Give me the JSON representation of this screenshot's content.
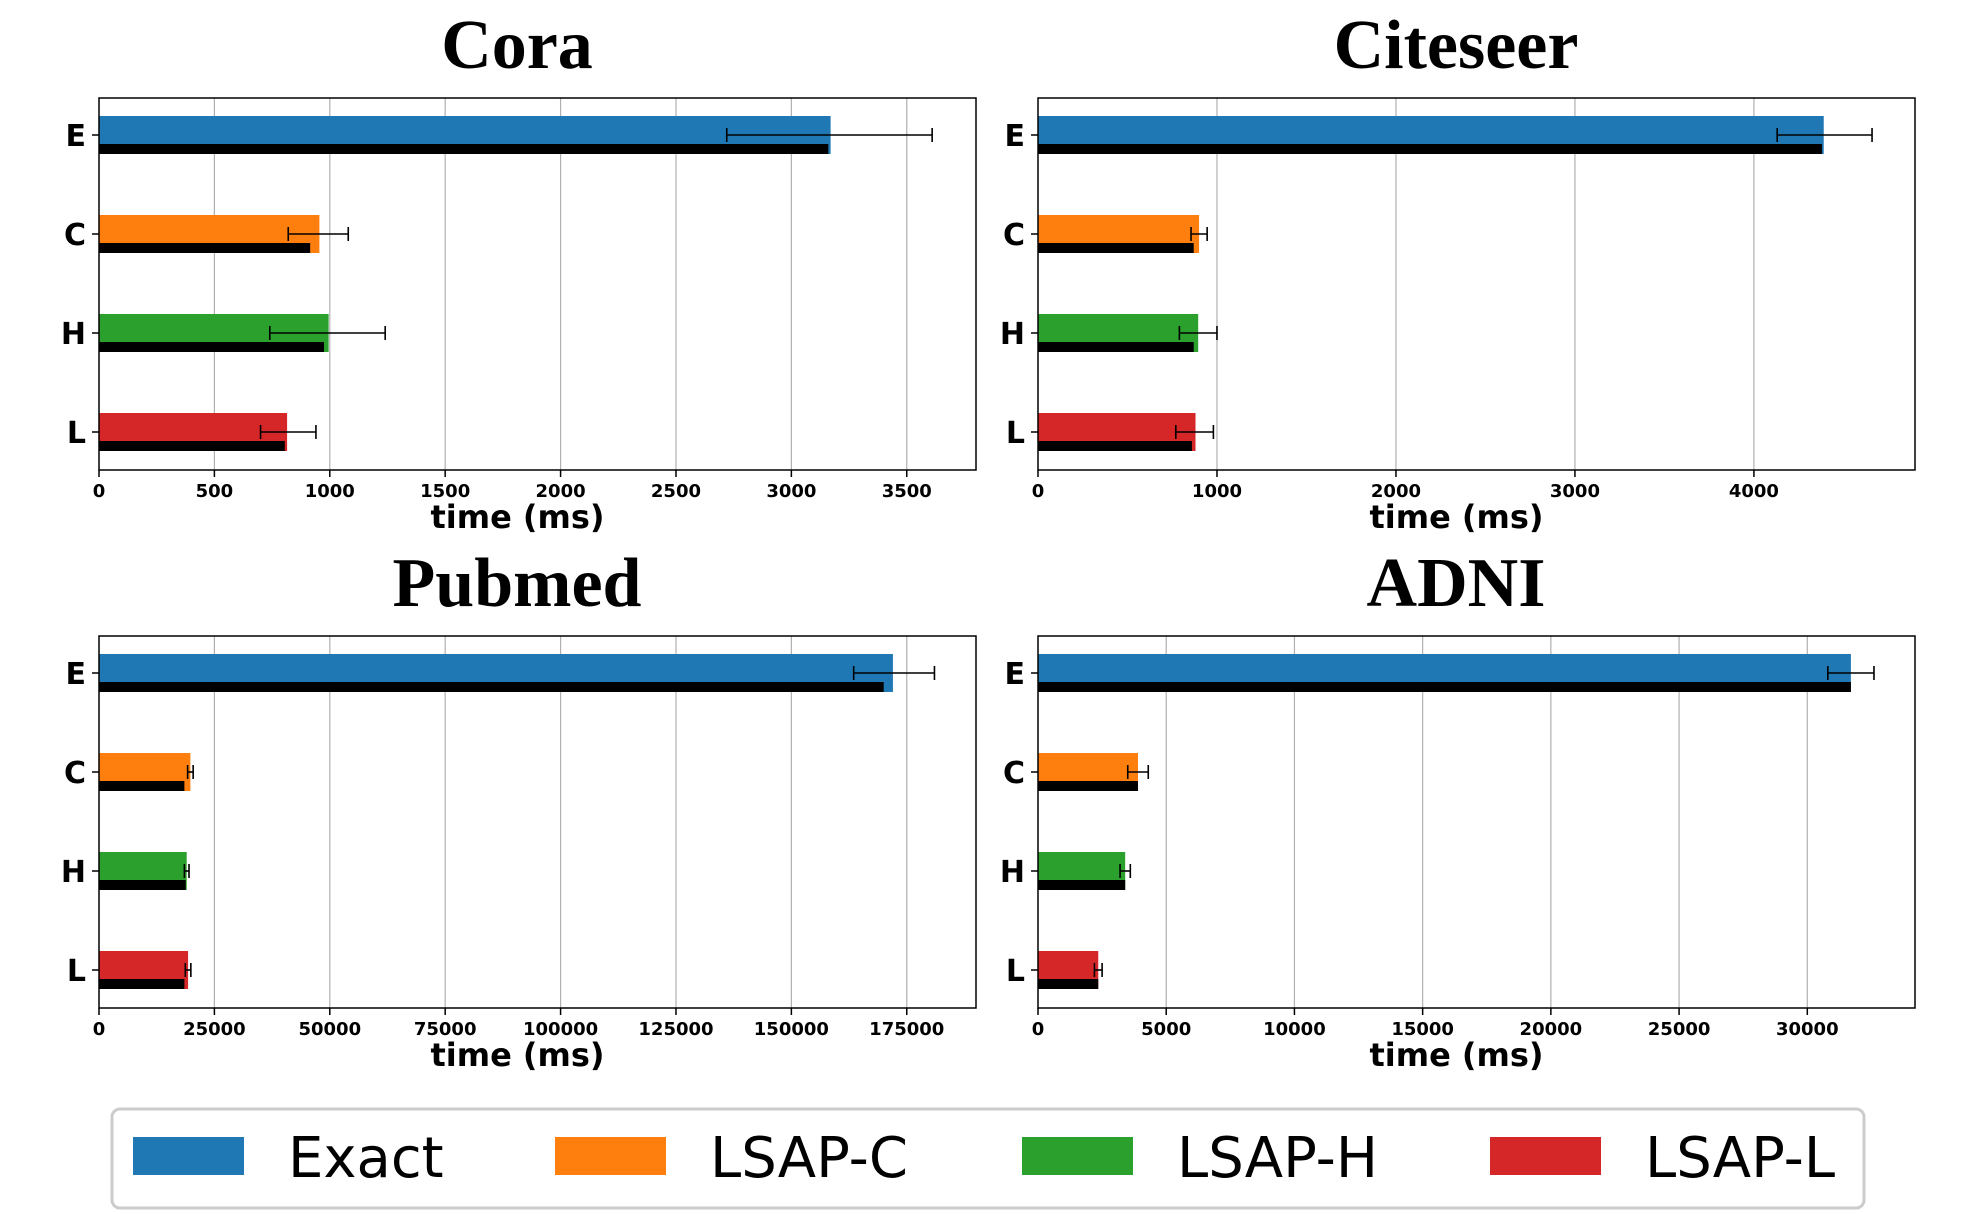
{
  "chart_data": [
    {
      "type": "bar",
      "title": "Cora",
      "xlabel": "time (ms)",
      "categories": [
        "E",
        "C",
        "H",
        "L"
      ],
      "xlim": [
        0,
        3800
      ],
      "xticks": [
        0,
        500,
        1000,
        1500,
        2000,
        2500,
        3000,
        3500
      ],
      "xtick_labels": [
        "0",
        "500",
        "1000",
        "1500",
        "2000",
        "2500",
        "3000",
        "3500"
      ],
      "grid": "vertical",
      "values": [
        3170,
        955,
        995,
        815
      ],
      "error": [
        [
          2720,
          3610
        ],
        [
          820,
          1080
        ],
        [
          740,
          1240
        ],
        [
          700,
          940
        ]
      ],
      "black_values": [
        3160,
        915,
        975,
        805
      ]
    },
    {
      "type": "bar",
      "title": "Citeseer",
      "xlabel": "time (ms)",
      "categories": [
        "E",
        "C",
        "H",
        "L"
      ],
      "xlim": [
        0,
        4900
      ],
      "xticks": [
        0,
        1000,
        2000,
        3000,
        4000
      ],
      "xtick_labels": [
        "0",
        "1000",
        "2000",
        "3000",
        "4000"
      ],
      "grid": "vertical",
      "values": [
        4390,
        900,
        895,
        880
      ],
      "error": [
        [
          4130,
          4660
        ],
        [
          855,
          945
        ],
        [
          790,
          1000
        ],
        [
          770,
          980
        ]
      ],
      "black_values": [
        4380,
        870,
        870,
        860
      ]
    },
    {
      "type": "bar",
      "title": "Pubmed",
      "xlabel": "time (ms)",
      "categories": [
        "E",
        "C",
        "H",
        "L"
      ],
      "xlim": [
        0,
        190000
      ],
      "xticks": [
        0,
        25000,
        50000,
        75000,
        100000,
        125000,
        150000,
        175000
      ],
      "xtick_labels": [
        "0",
        "25000",
        "50000",
        "75000",
        "100000",
        "125000",
        "150000",
        "175000"
      ],
      "grid": "vertical",
      "values": [
        172000,
        19800,
        19000,
        19300
      ],
      "error": [
        [
          163500,
          181000
        ],
        [
          19200,
          20400
        ],
        [
          18500,
          19500
        ],
        [
          18700,
          19900
        ]
      ],
      "black_values": [
        170000,
        18500,
        18800,
        18500
      ]
    },
    {
      "type": "bar",
      "title": "ADNI",
      "xlabel": "time (ms)",
      "categories": [
        "E",
        "C",
        "H",
        "L"
      ],
      "xlim": [
        0,
        34200
      ],
      "xticks": [
        0,
        5000,
        10000,
        15000,
        20000,
        25000,
        30000
      ],
      "xtick_labels": [
        "0",
        "5000",
        "10000",
        "15000",
        "20000",
        "25000",
        "30000"
      ],
      "grid": "vertical",
      "values": [
        31700,
        3900,
        3400,
        2350
      ],
      "error": [
        [
          30800,
          32600
        ],
        [
          3500,
          4300
        ],
        [
          3200,
          3600
        ],
        [
          2200,
          2500
        ]
      ],
      "black_values": [
        31700,
        3900,
        3400,
        2350
      ]
    }
  ],
  "legend": {
    "placement": "bottom",
    "items": [
      {
        "label": "Exact",
        "color": "#1f77b4"
      },
      {
        "label": "LSAP-C",
        "color": "#ff7f0e"
      },
      {
        "label": "LSAP-H",
        "color": "#2ca02c"
      },
      {
        "label": "LSAP-L",
        "color": "#d62728"
      }
    ]
  },
  "colors": {
    "series": [
      "#1f77b4",
      "#ff7f0e",
      "#2ca02c",
      "#d62728"
    ],
    "overlay": "#000000",
    "grid": "#b0b0b0"
  }
}
